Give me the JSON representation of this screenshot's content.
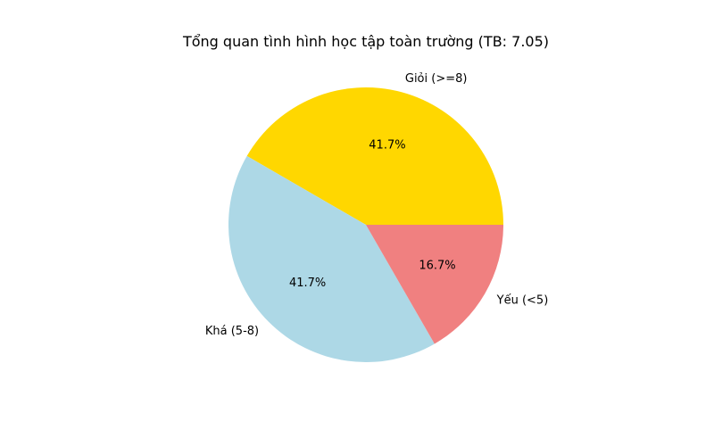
{
  "chart_data": {
    "type": "pie",
    "title": "Tổng quan tình hình học tập toàn trường (TB: 7.05)",
    "categories": [
      "Giỏi (>=8)",
      "Khá (5-8)",
      "Yếu (<5)"
    ],
    "values": [
      41.7,
      41.7,
      16.7
    ],
    "percent_labels": [
      "41.7%",
      "41.7%",
      "16.7%"
    ],
    "colors": [
      "#FFD700",
      "#ADD8E6",
      "#F08080"
    ],
    "start_angle_deg": 0,
    "direction": "counterclockwise",
    "legend": "none"
  }
}
